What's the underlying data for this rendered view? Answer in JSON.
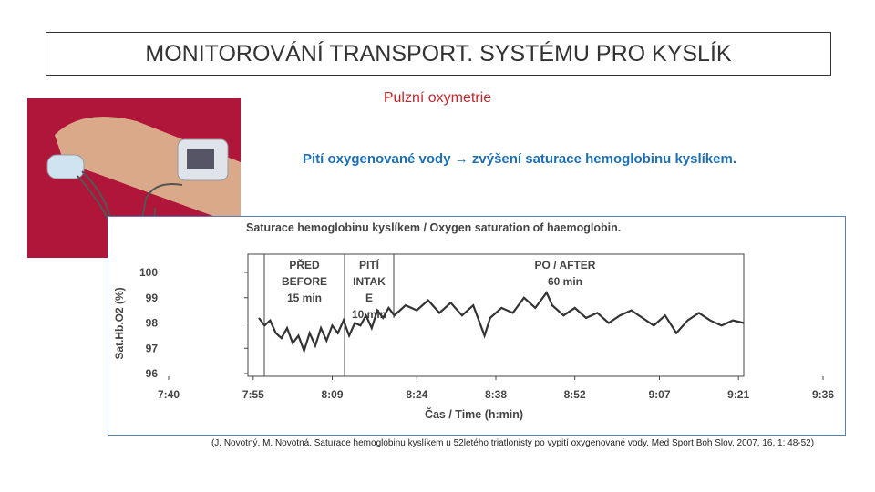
{
  "slide": {
    "title": "MONITOROVÁNÍ TRANSPORT. SYSTÉMU PRO KYSLÍK",
    "subtitle": "Pulzní oxymetrie",
    "statement": "Pití oxygenované vody → zvýšení saturace hemoglobinu kyslíkem.",
    "citation": "(J. Novotný, M. Novotná. Saturace hemoglobinu kyslíkem u 52letého triatlonisty po vypití oxygenované vody. Med Sport Boh Slov, 2007, 16, 1: 48-52)"
  },
  "chart_data": {
    "type": "line",
    "title": "Saturace hemoglobinu kyslíkem / Oxygen saturation of haemoglobin.",
    "y_label": "Sat.Hb.O2 (%)",
    "x_label": "Čas / Time (h:min)",
    "phases": [
      [
        "PŘED",
        "BEFORE",
        "15 min"
      ],
      [
        "PITÍ",
        "INTAK",
        "E",
        "10 min"
      ],
      [
        "PO / AFTER",
        "60 min"
      ]
    ],
    "xlim": [
      460,
      576
    ],
    "xticks": [
      {
        "value": 460,
        "label": "7:40"
      },
      {
        "value": 475,
        "label": "7:55"
      },
      {
        "value": 489,
        "label": "8:09"
      },
      {
        "value": 504,
        "label": "8:24"
      },
      {
        "value": 518,
        "label": "8:38"
      },
      {
        "value": 532,
        "label": "8:52"
      },
      {
        "value": 547,
        "label": "9:07"
      },
      {
        "value": 561,
        "label": "9:21"
      },
      {
        "value": 576,
        "label": "9:36"
      }
    ],
    "ylim": [
      96,
      100
    ],
    "yticks": [
      96,
      97,
      98,
      99,
      100
    ],
    "color": "#333333",
    "x": [
      476,
      477,
      478,
      479,
      480,
      481,
      482,
      483,
      484,
      485,
      486,
      487,
      488,
      489,
      490,
      491,
      492,
      493,
      494,
      495,
      496,
      497,
      498,
      499,
      500,
      502,
      504,
      506,
      508,
      510,
      512,
      514,
      516,
      517,
      519,
      521,
      523,
      525,
      527,
      528,
      530,
      532,
      534,
      536,
      538,
      540,
      542,
      544,
      546,
      548,
      550,
      552,
      554,
      556,
      558,
      560,
      562
    ],
    "values": [
      98.2,
      97.9,
      98.1,
      97.6,
      97.4,
      97.8,
      97.2,
      97.5,
      96.9,
      97.6,
      97.1,
      97.8,
      97.3,
      97.9,
      97.6,
      98.1,
      97.5,
      98.0,
      97.9,
      98.3,
      97.8,
      98.5,
      98.2,
      98.6,
      98.3,
      98.7,
      98.5,
      98.9,
      98.4,
      98.8,
      98.3,
      98.7,
      97.5,
      98.2,
      98.6,
      98.4,
      99.0,
      98.6,
      99.2,
      98.7,
      98.3,
      98.6,
      98.2,
      98.4,
      98.0,
      98.3,
      98.5,
      98.2,
      97.9,
      98.3,
      97.6,
      98.1,
      98.4,
      98.1,
      97.9,
      98.1,
      98.0
    ]
  }
}
